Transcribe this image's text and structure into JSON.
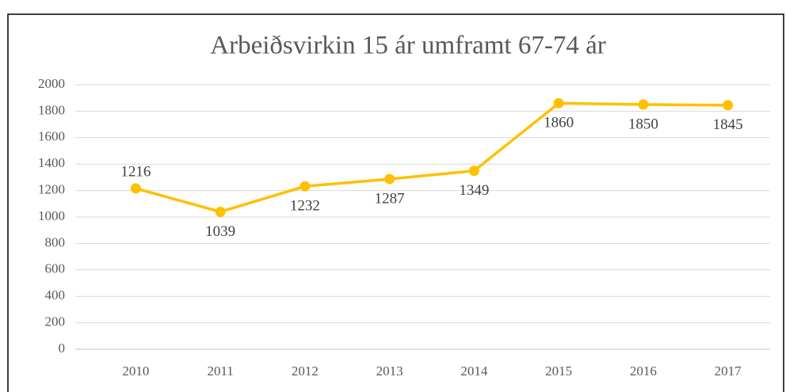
{
  "chart_data": {
    "type": "line",
    "title": "Arbeiðsvirkin 15 ár umframt 67-74 ár",
    "categories": [
      "2010",
      "2011",
      "2012",
      "2013",
      "2014",
      "2015",
      "2016",
      "2017"
    ],
    "values": [
      1216,
      1039,
      1232,
      1287,
      1349,
      1860,
      1850,
      1845
    ],
    "color": "#ffc000",
    "ylim": [
      0,
      2000
    ],
    "yticks": [
      0,
      200,
      400,
      600,
      800,
      1000,
      1200,
      1400,
      1600,
      1800,
      2000
    ],
    "grid": true
  }
}
